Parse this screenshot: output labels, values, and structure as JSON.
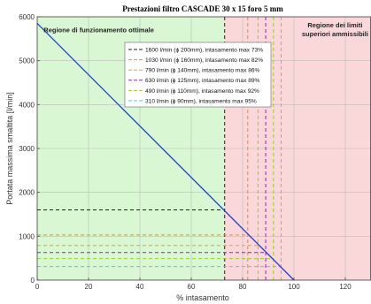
{
  "chart_data": {
    "type": "line",
    "title": "Prestazioni filtro CASCADE 30 x 15 foro 5 mm",
    "xlabel": "% intasamento",
    "ylabel": "Portata massima smaltita [l/min]",
    "xlim": [
      0,
      130
    ],
    "ylim": [
      0,
      6000
    ],
    "xticks": [
      0,
      20,
      40,
      60,
      80,
      100,
      120
    ],
    "yticks": [
      0,
      1000,
      2000,
      3000,
      4000,
      5000,
      6000
    ],
    "xtick_labels": [
      "0",
      "20",
      "40",
      "60",
      "80",
      "100",
      "120"
    ],
    "ytick_labels": [
      "0",
      "1000",
      "2000",
      "3000",
      "4000",
      "5000",
      "6000"
    ],
    "grid": true,
    "legend_position": "top-center",
    "regions": [
      {
        "label": "Regione di funzionamento ottimale",
        "x_range": [
          0,
          73
        ],
        "color": "#d9f7d3"
      },
      {
        "label": "Regione dei limiti\nsuperiori ammissibili",
        "x_range": [
          73,
          130
        ],
        "color": "#fad7d9"
      }
    ],
    "main_line": {
      "x": [
        0,
        100
      ],
      "y": [
        5850,
        0
      ],
      "color": "#1f3fe0"
    },
    "series": [
      {
        "name": "1600 l/min (ϕ 200mm), intasamento max 73%",
        "flow": 1600,
        "max_clog": 73,
        "color": "#222222"
      },
      {
        "name": "1030 l/min (ϕ 160mm), intasamento max 82%",
        "flow": 1030,
        "max_clog": 82,
        "color": "#f08a24"
      },
      {
        "name": "790 l/min (ϕ 140mm), intasamento max 86%",
        "flow": 790,
        "max_clog": 86,
        "color": "#f0a020"
      },
      {
        "name": "630 l/min (ϕ 125mm), intasamento max 89%",
        "flow": 630,
        "max_clog": 89,
        "color": "#8a2bb0"
      },
      {
        "name": "490 l/min (ϕ 110mm), intasamento max 92%",
        "flow": 490,
        "max_clog": 92,
        "color": "#9acd32"
      },
      {
        "name": "310 l/min (ϕ 90mm), intasamento max 95%",
        "flow": 310,
        "max_clog": 95,
        "color": "#56c3e8"
      }
    ]
  }
}
